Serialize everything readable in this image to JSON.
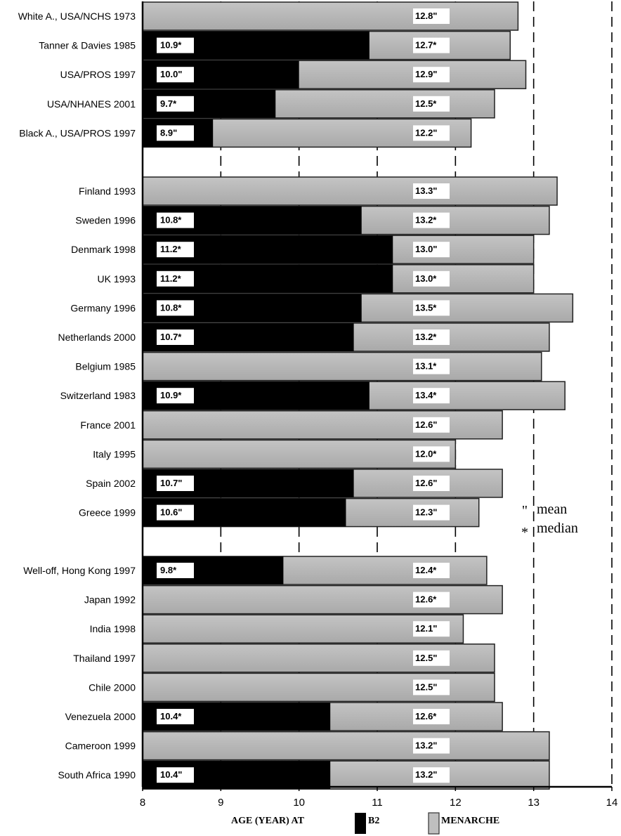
{
  "chart_data": {
    "type": "bar",
    "orientation": "horizontal",
    "stacked_overlay": true,
    "xlabel": "AGE (YEAR) AT",
    "xlim": [
      8,
      14
    ],
    "xticks": [
      8,
      9,
      10,
      11,
      12,
      13,
      14
    ],
    "legend": {
      "placement": "bottom",
      "items": [
        {
          "name": "B2",
          "color": "#000000"
        },
        {
          "name": "MENARCHE",
          "color": "#bfbfbf"
        }
      ]
    },
    "marker_legend": [
      {
        "symbol": "\"",
        "meaning": "mean"
      },
      {
        "symbol": "*",
        "meaning": "median"
      }
    ],
    "reference_lines": [
      13,
      14
    ],
    "groups": [
      [
        {
          "label": "White A., USA/NCHS 1973",
          "b2": null,
          "b2_text": "",
          "menarche": 12.8,
          "menarche_text": "12.8\""
        },
        {
          "label": "Tanner & Davies 1985",
          "b2": 10.9,
          "b2_text": "10.9*",
          "menarche": 12.7,
          "menarche_text": "12.7*"
        },
        {
          "label": "USA/PROS 1997",
          "b2": 10.0,
          "b2_text": "10.0\"",
          "menarche": 12.9,
          "menarche_text": "12.9\""
        },
        {
          "label": "USA/NHANES 2001",
          "b2": 9.7,
          "b2_text": "9.7*",
          "menarche": 12.5,
          "menarche_text": "12.5*"
        },
        {
          "label": "Black A., USA/PROS 1997",
          "b2": 8.9,
          "b2_text": "8.9\"",
          "menarche": 12.2,
          "menarche_text": "12.2\""
        }
      ],
      [
        {
          "label": "Finland 1993",
          "b2": null,
          "b2_text": "",
          "menarche": 13.3,
          "menarche_text": "13.3\""
        },
        {
          "label": "Sweden 1996",
          "b2": 10.8,
          "b2_text": "10.8*",
          "menarche": 13.2,
          "menarche_text": "13.2*"
        },
        {
          "label": "Denmark 1998",
          "b2": 11.2,
          "b2_text": "11.2*",
          "menarche": 13.0,
          "menarche_text": "13.0\""
        },
        {
          "label": "UK 1993",
          "b2": 11.2,
          "b2_text": "11.2*",
          "menarche": 13.0,
          "menarche_text": "13.0*"
        },
        {
          "label": "Germany 1996",
          "b2": 10.8,
          "b2_text": "10.8*",
          "menarche": 13.5,
          "menarche_text": "13.5*"
        },
        {
          "label": "Netherlands 2000",
          "b2": 10.7,
          "b2_text": "10.7*",
          "menarche": 13.2,
          "menarche_text": "13.2*"
        },
        {
          "label": "Belgium 1985",
          "b2": null,
          "b2_text": "",
          "menarche": 13.1,
          "menarche_text": "13.1*"
        },
        {
          "label": "Switzerland 1983",
          "b2": 10.9,
          "b2_text": "10.9*",
          "menarche": 13.4,
          "menarche_text": "13.4*"
        },
        {
          "label": "France 2001",
          "b2": null,
          "b2_text": "",
          "menarche": 12.6,
          "menarche_text": "12.6\""
        },
        {
          "label": "Italy 1995",
          "b2": null,
          "b2_text": "",
          "menarche": 12.0,
          "menarche_text": "12.0*"
        },
        {
          "label": "Spain 2002",
          "b2": 10.7,
          "b2_text": "10.7\"",
          "menarche": 12.6,
          "menarche_text": "12.6\""
        },
        {
          "label": "Greece 1999",
          "b2": 10.6,
          "b2_text": "10.6\"",
          "menarche": 12.3,
          "menarche_text": "12.3\""
        }
      ],
      [
        {
          "label": "Well-off, Hong Kong 1997",
          "b2": 9.8,
          "b2_text": "9.8*",
          "menarche": 12.4,
          "menarche_text": "12.4*"
        },
        {
          "label": "Japan 1992",
          "b2": null,
          "b2_text": "",
          "menarche": 12.6,
          "menarche_text": "12.6*"
        },
        {
          "label": "India 1998",
          "b2": null,
          "b2_text": "",
          "menarche": 12.1,
          "menarche_text": "12.1\""
        },
        {
          "label": "Thailand 1997",
          "b2": null,
          "b2_text": "",
          "menarche": 12.5,
          "menarche_text": "12.5\""
        },
        {
          "label": "Chile 2000",
          "b2": null,
          "b2_text": "",
          "menarche": 12.5,
          "menarche_text": "12.5\""
        },
        {
          "label": "Venezuela 2000",
          "b2": 10.4,
          "b2_text": "10.4*",
          "menarche": 12.6,
          "menarche_text": "12.6*"
        },
        {
          "label": "Cameroon 1999",
          "b2": null,
          "b2_text": "",
          "menarche": 13.2,
          "menarche_text": "13.2\""
        },
        {
          "label": "South Africa 1990",
          "b2": 10.4,
          "b2_text": "10.4\"",
          "menarche": 13.2,
          "menarche_text": "13.2\""
        }
      ]
    ]
  }
}
